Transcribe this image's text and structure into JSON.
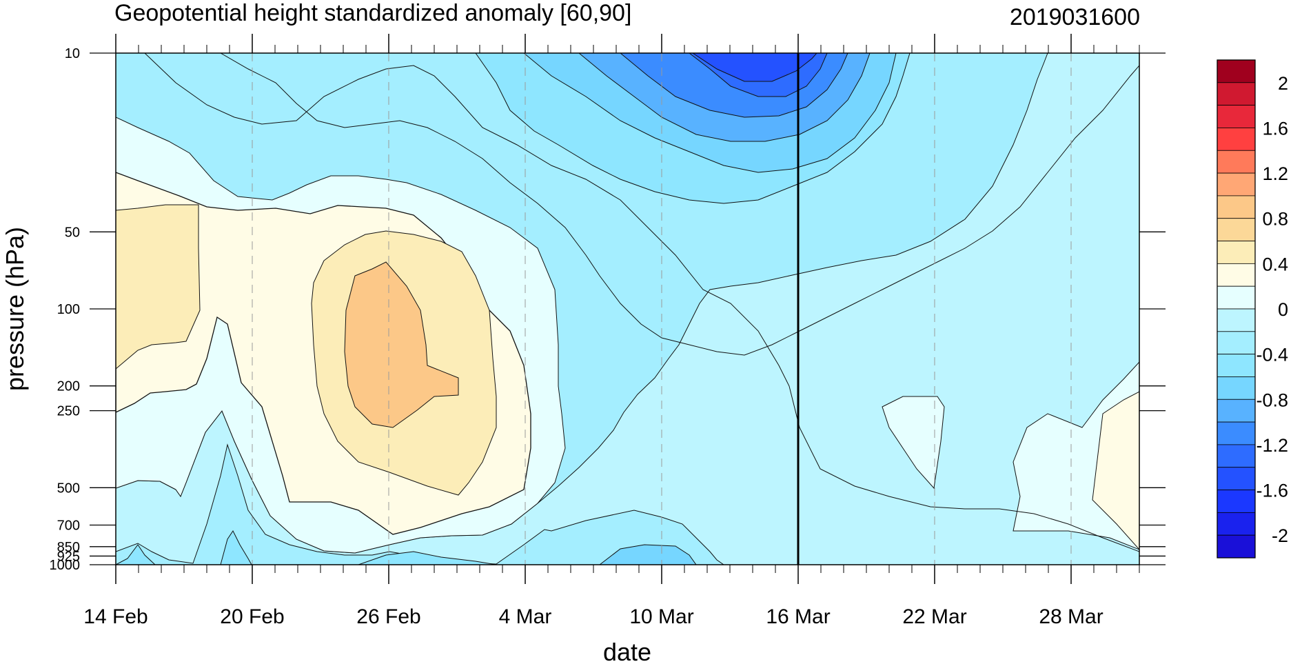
{
  "chart_data": {
    "type": "heatmap",
    "title": "Geopotential height standardized anomaly [60,90]",
    "subtitle": "2019031600",
    "xlabel": "date",
    "ylabel": "pressure (hPa)",
    "x_ticks": [
      "14 Feb",
      "20 Feb",
      "26 Feb",
      "4 Mar",
      "10 Mar",
      "16 Mar",
      "22 Mar",
      "28 Mar"
    ],
    "x_range": [
      "2019-02-14",
      "2019-03-31"
    ],
    "y_scale": "log",
    "y_reversed": true,
    "y_ticks": [
      "10",
      "50",
      "100",
      "200",
      "250",
      "500",
      "700",
      "850",
      "925",
      "1000"
    ],
    "y_range": [
      1000,
      10
    ],
    "levels": [
      -2.2,
      -2,
      -1.8,
      -1.6,
      -1.4,
      -1.2,
      -1.0,
      -0.8,
      -0.6,
      -0.4,
      -0.2,
      0,
      0.2,
      0.4,
      0.6,
      0.8,
      1.0,
      1.2,
      1.4,
      1.6,
      1.8,
      2.0,
      2.2
    ],
    "colorbar_labels": [
      "2",
      "1.6",
      "1.2",
      "0.8",
      "0.4",
      "0",
      "-0.4",
      "-0.8",
      "-1.2",
      "-1.6",
      "-2"
    ],
    "colorbar_colors": [
      "#a0001e",
      "#d01930",
      "#e8283a",
      "#ff4040",
      "#ff7a5a",
      "#ffa775",
      "#fcc888",
      "#fcd898",
      "#fcedb8",
      "#fffce6",
      "#e6ffff",
      "#bdf5ff",
      "#a4eeff",
      "#8ee6ff",
      "#76d6ff",
      "#58b2ff",
      "#3b8cff",
      "#2e6cff",
      "#2452ff",
      "#1b38ff",
      "#1a22ee",
      "#1a10d8"
    ],
    "marked_date": "16 Mar",
    "grid": "dashed vertical lines at x ticks",
    "regions": [
      {
        "range": "-1.8 to -1.6",
        "location": "near 10 hPa, around 12–19 Mar"
      },
      {
        "range": "-1.0 to -0.8",
        "location": "upper stratosphere, 5–20 Mar"
      },
      {
        "range": "0.4 to 0.6",
        "location": "about 100–250 hPa, 24–28 Feb"
      },
      {
        "range": "0.2 to 0.4",
        "location": "about 50–500 hPa, late Feb"
      },
      {
        "range": "0 to 0.2",
        "location": "about 250–500 hPa, late Mar"
      }
    ]
  }
}
